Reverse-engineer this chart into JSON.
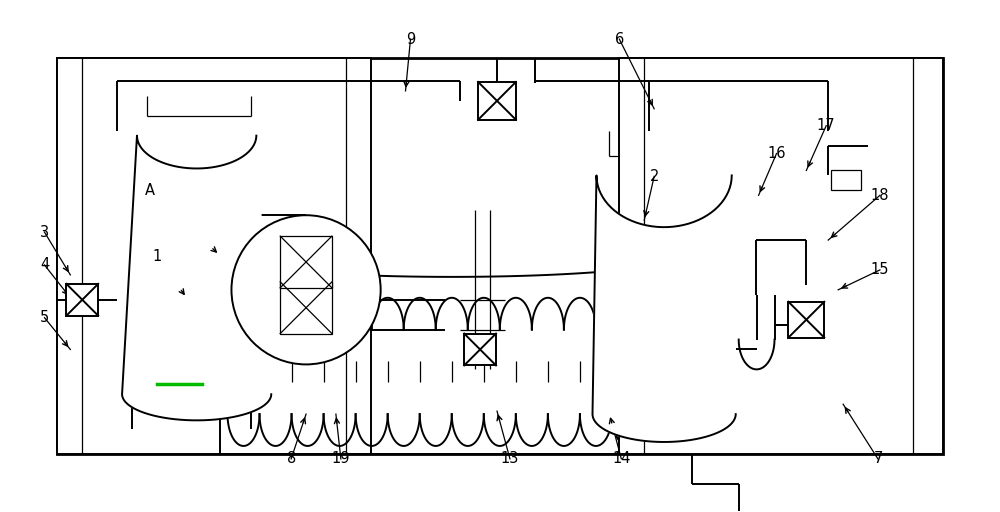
{
  "bg_color": "#ffffff",
  "lc": "#000000",
  "lw": 1.4,
  "lw_thin": 0.9,
  "lw_thick": 2.0,
  "figsize": [
    10.0,
    5.12
  ],
  "dpi": 100
}
